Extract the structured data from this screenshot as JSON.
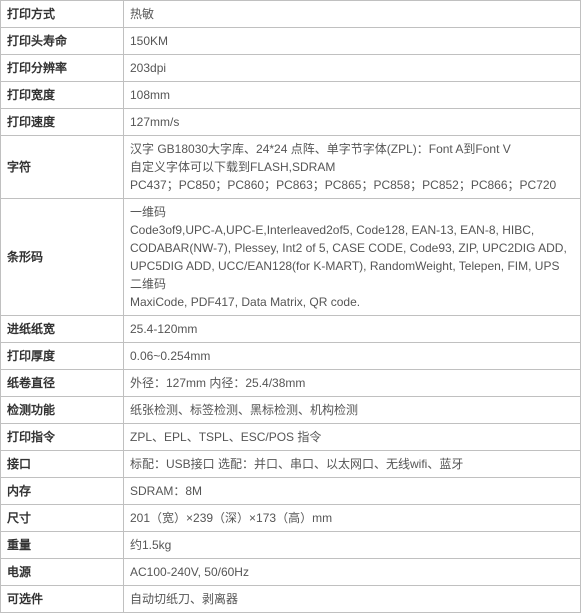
{
  "specs": [
    {
      "label": "打印方式",
      "value": "热敏"
    },
    {
      "label": "打印头寿命",
      "value": "150KM"
    },
    {
      "label": "打印分辨率",
      "value": "203dpi"
    },
    {
      "label": "打印宽度",
      "value": "108mm"
    },
    {
      "label": "打印速度",
      "value": "127mm/s"
    },
    {
      "label": "字符",
      "value": "汉字 GB18030大字库、24*24 点阵、单字节字体(ZPL)：Font A到Font V\n自定义字体可以下载到FLASH,SDRAM\nPC437；PC850；PC860；PC863；PC865；PC858；PC852；PC866；PC720"
    },
    {
      "label": "条形码",
      "value": "一维码\nCode3of9,UPC-A,UPC-E,Interleaved2of5, Code128, EAN-13, EAN-8, HIBC, CODABAR(NW-7), Plessey, Int2 of 5, CASE CODE, Code93, ZIP, UPC2DIG ADD, UPC5DIG ADD, UCC/EAN128(for K-MART), RandomWeight, Telepen, FIM, UPS\n二维码\nMaxiCode, PDF417, Data Matrix,  QR code."
    },
    {
      "label": "进纸纸宽",
      "value": "25.4-120mm"
    },
    {
      "label": "打印厚度",
      "value": "0.06~0.254mm"
    },
    {
      "label": "纸卷直径",
      "value": "外径：127mm     内径：25.4/38mm"
    },
    {
      "label": "检测功能",
      "value": "纸张检测、标签检测、黑标检测、机构检测"
    },
    {
      "label": "打印指令",
      "value": "ZPL、EPL、TSPL、ESC/POS 指令"
    },
    {
      "label": "接口",
      "value": "标配：USB接口    选配：并口、串口、以太网口、无线wifi、蓝牙"
    },
    {
      "label": "内存",
      "value": "SDRAM：8M"
    },
    {
      "label": "尺寸",
      "value": "201（宽）×239（深）×173（高）mm"
    },
    {
      "label": "重量",
      "value": "约1.5kg"
    },
    {
      "label": "电源",
      "value": "AC100-240V,   50/60Hz"
    },
    {
      "label": "可选件",
      "value": "自动切纸刀、剥离器"
    }
  ]
}
